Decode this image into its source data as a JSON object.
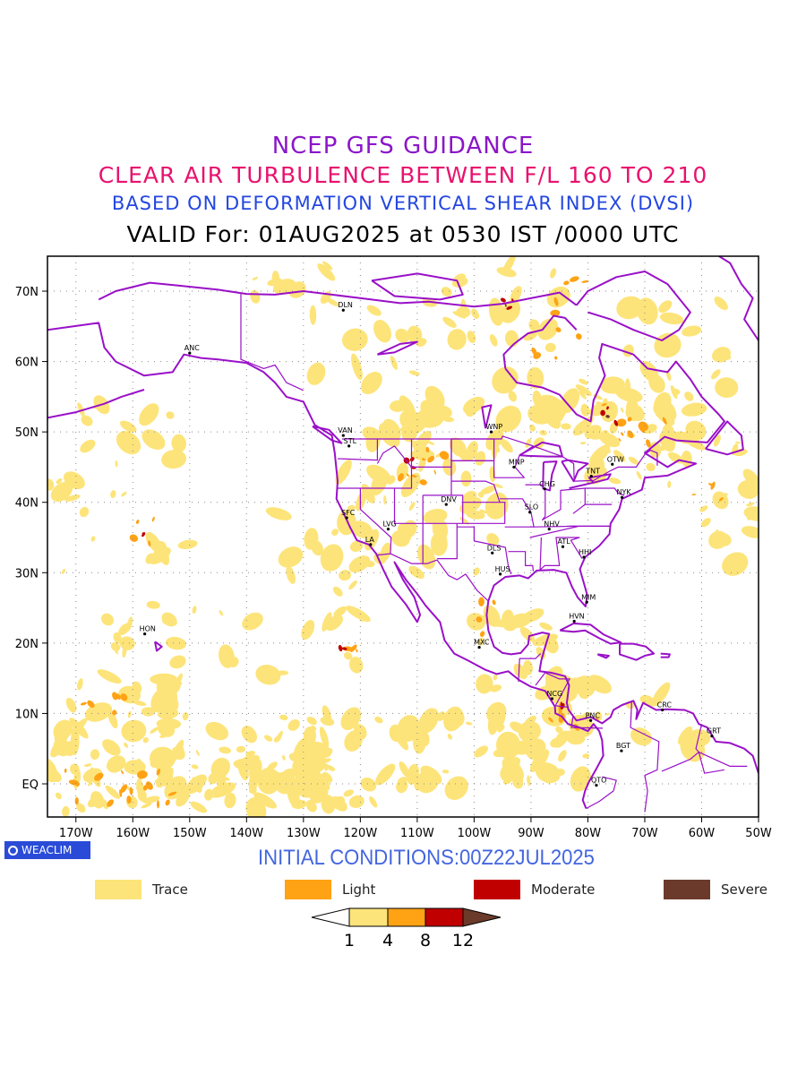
{
  "titles": {
    "line1": "NCEP GFS GUIDANCE",
    "line2": "CLEAR AIR TURBULENCE BETWEEN F/L 160 TO 210",
    "line3": "BASED ON DEFORMATION VERTICAL SHEAR INDEX (DVSI)",
    "line4": "VALID For: 01AUG2025 at 0530 IST /0000 UTC"
  },
  "colors": {
    "line1": "#8a16c8",
    "line2": "#e8126e",
    "line3": "#2346e0",
    "line4": "#000000",
    "border": "#9a10c8",
    "trace": "#fde47a",
    "light": "#ffa214",
    "moderate": "#c00000",
    "severe": "#6b3a2a",
    "init_text": "#4466e0"
  },
  "map": {
    "lon_labels": [
      "170W",
      "160W",
      "150W",
      "140W",
      "130W",
      "120W",
      "110W",
      "100W",
      "90W",
      "80W",
      "70W",
      "60W",
      "50W"
    ],
    "lat_labels": [
      "70N",
      "60N",
      "50N",
      "40N",
      "30N",
      "20N",
      "10N",
      "EQ"
    ],
    "stations": [
      {
        "name": "ANC",
        "lon": -150,
        "lat": 61.2
      },
      {
        "name": "DLN",
        "lon": -123,
        "lat": 67.3
      },
      {
        "name": "VAN",
        "lon": -123,
        "lat": 49.5
      },
      {
        "name": "STL",
        "lon": -122,
        "lat": 48
      },
      {
        "name": "WNP",
        "lon": -97,
        "lat": 50
      },
      {
        "name": "MNP",
        "lon": -93,
        "lat": 45
      },
      {
        "name": "TNT",
        "lon": -79.4,
        "lat": 43.7
      },
      {
        "name": "OTW",
        "lon": -75.7,
        "lat": 45.4
      },
      {
        "name": "CHG",
        "lon": -87.6,
        "lat": 41.9
      },
      {
        "name": "NYK",
        "lon": -74,
        "lat": 40.7
      },
      {
        "name": "SFC",
        "lon": -122.4,
        "lat": 37.8
      },
      {
        "name": "DNV",
        "lon": -104.9,
        "lat": 39.7
      },
      {
        "name": "SLO",
        "lon": -90.2,
        "lat": 38.6
      },
      {
        "name": "LVG",
        "lon": -115.1,
        "lat": 36.2
      },
      {
        "name": "LA",
        "lon": -118.2,
        "lat": 34
      },
      {
        "name": "NHV",
        "lon": -86.8,
        "lat": 36.2
      },
      {
        "name": "ATL",
        "lon": -84.4,
        "lat": 33.7
      },
      {
        "name": "DLS",
        "lon": -96.8,
        "lat": 32.8
      },
      {
        "name": "HHI",
        "lon": -80.7,
        "lat": 32.2
      },
      {
        "name": "HUS",
        "lon": -95.4,
        "lat": 29.8
      },
      {
        "name": "MIM",
        "lon": -80.2,
        "lat": 25.8
      },
      {
        "name": "HVN",
        "lon": -82.4,
        "lat": 23.1
      },
      {
        "name": "HON",
        "lon": -157.9,
        "lat": 21.3
      },
      {
        "name": "MXC",
        "lon": -99.1,
        "lat": 19.4
      },
      {
        "name": "NCG",
        "lon": -86.3,
        "lat": 12.1
      },
      {
        "name": "CRC",
        "lon": -66.9,
        "lat": 10.5
      },
      {
        "name": "PNC",
        "lon": -79.5,
        "lat": 9
      },
      {
        "name": "GRT",
        "lon": -58.2,
        "lat": 6.8
      },
      {
        "name": "BGT",
        "lon": -74.1,
        "lat": 4.7
      },
      {
        "name": "QTO",
        "lon": -78.5,
        "lat": -0.2
      }
    ]
  },
  "logo_text": "WEACLIM",
  "initial_conditions": "INITIAL CONDITIONS:00Z22JUL2025",
  "legend": [
    {
      "label": "Trace",
      "color": "#fde47a"
    },
    {
      "label": "Light",
      "color": "#ffa214"
    },
    {
      "label": "Moderate",
      "color": "#c00000"
    },
    {
      "label": "Severe",
      "color": "#6b3a2a"
    }
  ],
  "colorbar": {
    "colors": [
      "#ffffff",
      "#fde47a",
      "#ffa214",
      "#c00000",
      "#6b3a2a"
    ],
    "tick_labels": [
      "1",
      "4",
      "8",
      "12"
    ]
  }
}
